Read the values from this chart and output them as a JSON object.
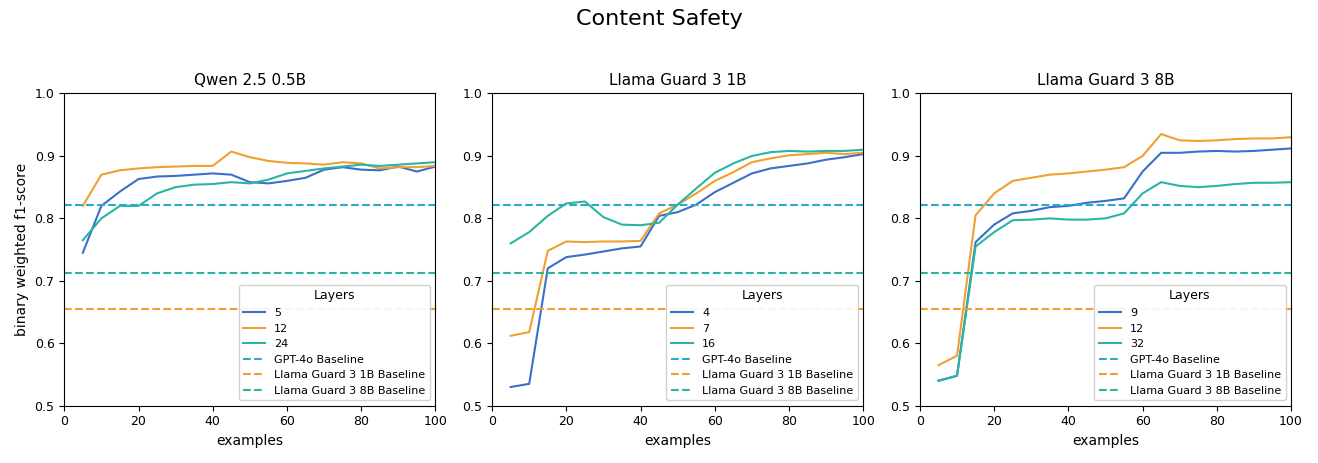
{
  "title": "Content Safety",
  "subplot_titles": [
    "Qwen 2.5 0.5B",
    "Llama Guard 3 1B",
    "Llama Guard 3 8B"
  ],
  "xlabel": "examples",
  "ylabel": "binary weighted f1-score",
  "ylim": [
    0.5,
    1.0
  ],
  "xlim": [
    0,
    100
  ],
  "baselines": {
    "gpt4o": 0.822,
    "llama_guard_1b": 0.655,
    "llama_guard_8b": 0.713
  },
  "baseline_colors": {
    "gpt4o": "#29a8d0",
    "llama_guard_1b": "#f0a030",
    "llama_guard_8b": "#2ab5a0"
  },
  "line_colors": [
    "#3a6fca",
    "#f0a030",
    "#2ab5a0"
  ],
  "panels": [
    {
      "title": "Qwen 2.5 0.5B",
      "layers": [
        "5",
        "12",
        "24"
      ],
      "x": [
        5,
        10,
        15,
        20,
        25,
        30,
        35,
        40,
        45,
        50,
        55,
        60,
        65,
        70,
        75,
        80,
        85,
        90,
        95,
        100
      ],
      "series": [
        [
          0.745,
          0.82,
          0.843,
          0.863,
          0.867,
          0.868,
          0.87,
          0.872,
          0.87,
          0.858,
          0.856,
          0.86,
          0.865,
          0.878,
          0.882,
          0.878,
          0.877,
          0.883,
          0.875,
          0.883
        ],
        [
          0.82,
          0.87,
          0.877,
          0.88,
          0.882,
          0.883,
          0.884,
          0.884,
          0.907,
          0.898,
          0.892,
          0.889,
          0.888,
          0.886,
          0.89,
          0.888,
          0.88,
          0.882,
          0.882,
          0.884
        ],
        [
          0.765,
          0.8,
          0.82,
          0.82,
          0.84,
          0.85,
          0.854,
          0.855,
          0.858,
          0.856,
          0.862,
          0.872,
          0.876,
          0.88,
          0.883,
          0.886,
          0.884,
          0.886,
          0.888,
          0.89
        ]
      ]
    },
    {
      "title": "Llama Guard 3 1B",
      "layers": [
        "4",
        "7",
        "16"
      ],
      "x": [
        5,
        10,
        15,
        20,
        25,
        30,
        35,
        40,
        45,
        50,
        55,
        60,
        65,
        70,
        75,
        80,
        85,
        90,
        95,
        100
      ],
      "series": [
        [
          0.53,
          0.535,
          0.72,
          0.738,
          0.742,
          0.747,
          0.752,
          0.755,
          0.804,
          0.81,
          0.822,
          0.842,
          0.857,
          0.872,
          0.88,
          0.884,
          0.888,
          0.894,
          0.898,
          0.903
        ],
        [
          0.612,
          0.618,
          0.748,
          0.763,
          0.762,
          0.763,
          0.763,
          0.764,
          0.808,
          0.822,
          0.84,
          0.86,
          0.874,
          0.89,
          0.896,
          0.901,
          0.903,
          0.905,
          0.903,
          0.905
        ],
        [
          0.76,
          0.778,
          0.804,
          0.824,
          0.827,
          0.802,
          0.79,
          0.789,
          0.793,
          0.822,
          0.848,
          0.873,
          0.888,
          0.9,
          0.906,
          0.908,
          0.907,
          0.908,
          0.908,
          0.91
        ]
      ]
    },
    {
      "title": "Llama Guard 3 8B",
      "layers": [
        "9",
        "12",
        "32"
      ],
      "x": [
        5,
        10,
        15,
        20,
        25,
        30,
        35,
        40,
        45,
        50,
        55,
        60,
        65,
        70,
        75,
        80,
        85,
        90,
        95,
        100
      ],
      "series": [
        [
          0.54,
          0.548,
          0.762,
          0.79,
          0.808,
          0.812,
          0.818,
          0.82,
          0.825,
          0.828,
          0.832,
          0.875,
          0.905,
          0.905,
          0.907,
          0.908,
          0.907,
          0.908,
          0.91,
          0.912
        ],
        [
          0.565,
          0.58,
          0.805,
          0.84,
          0.86,
          0.865,
          0.87,
          0.872,
          0.875,
          0.878,
          0.882,
          0.9,
          0.935,
          0.925,
          0.924,
          0.925,
          0.927,
          0.928,
          0.928,
          0.93
        ],
        [
          0.54,
          0.548,
          0.755,
          0.778,
          0.797,
          0.798,
          0.8,
          0.798,
          0.798,
          0.8,
          0.808,
          0.84,
          0.858,
          0.852,
          0.85,
          0.852,
          0.855,
          0.857,
          0.857,
          0.858
        ]
      ]
    }
  ]
}
